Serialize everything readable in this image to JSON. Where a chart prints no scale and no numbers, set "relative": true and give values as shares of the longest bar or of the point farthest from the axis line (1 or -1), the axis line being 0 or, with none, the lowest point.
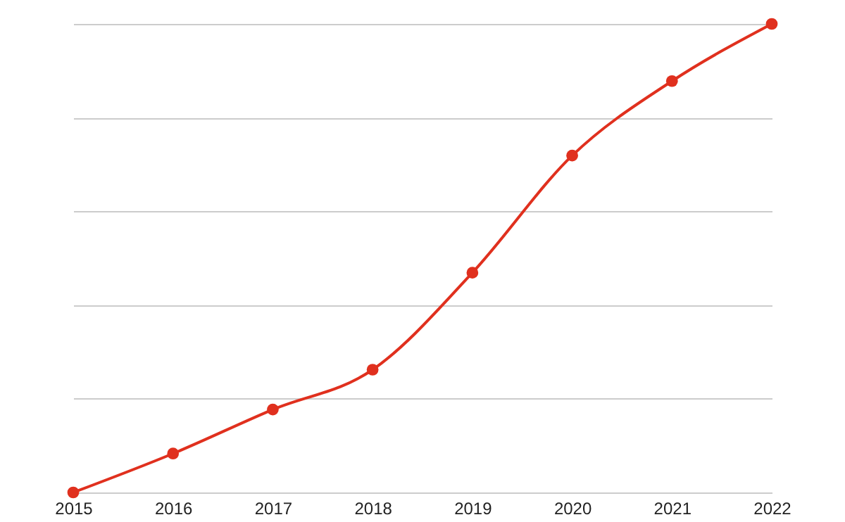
{
  "chart_data": {
    "type": "line",
    "relative": true,
    "categories": [
      "2015",
      "2016",
      "2017",
      "2018",
      "2019",
      "2020",
      "2021",
      "2022"
    ],
    "series": [
      {
        "color": "#e0301e",
        "values": [
          0,
          0.083,
          0.177,
          0.262,
          0.469,
          0.719,
          0.878,
          1
        ]
      }
    ],
    "marker": "circle",
    "grid": "y"
  }
}
